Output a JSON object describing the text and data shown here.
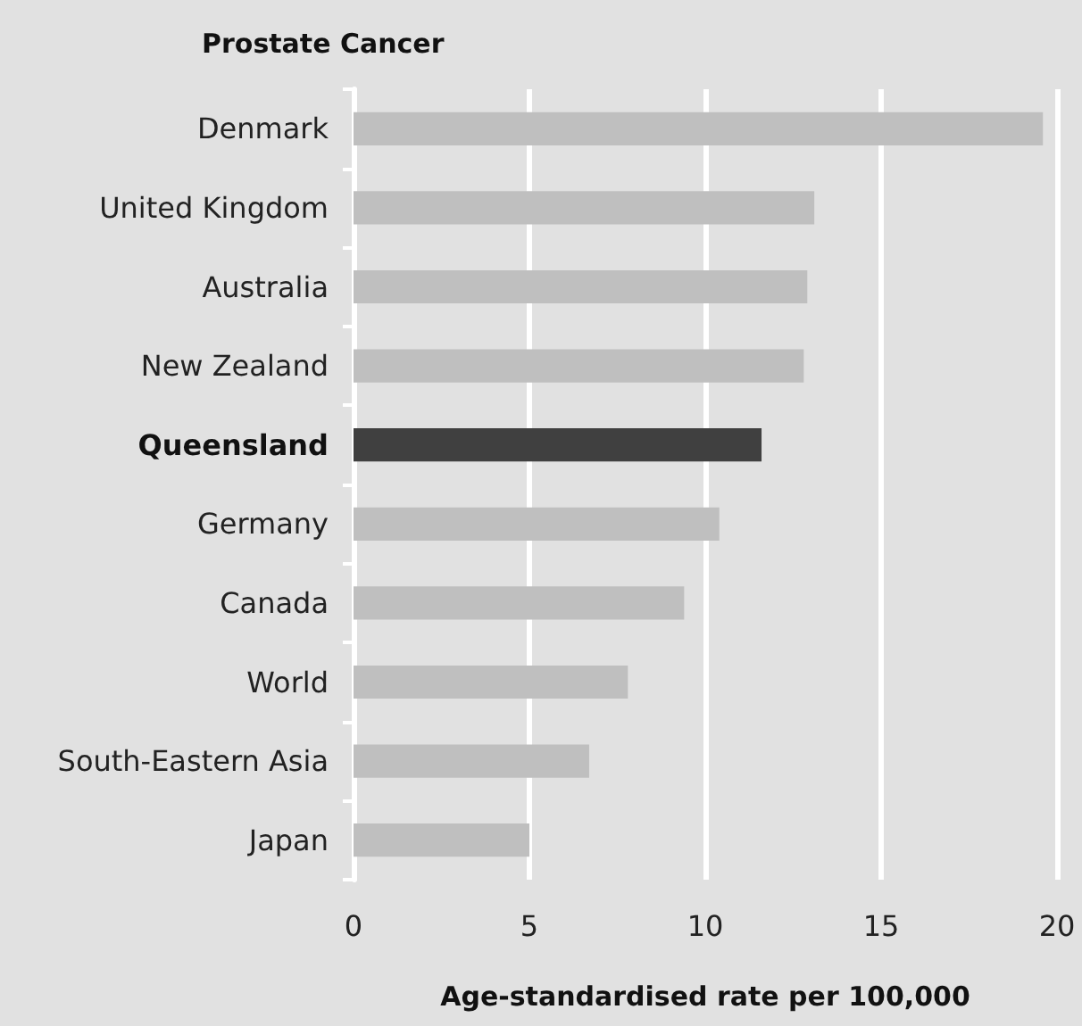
{
  "chart_data": {
    "type": "bar",
    "orientation": "horizontal",
    "title": "Prostate Cancer",
    "xlabel": "Age-standardised rate per 100,000",
    "categories": [
      "Denmark",
      "United Kingdom",
      "Australia",
      "New Zealand",
      "Queensland",
      "Germany",
      "Canada",
      "World",
      "South-Eastern Asia",
      "Japan"
    ],
    "values": [
      19.6,
      13.1,
      12.9,
      12.8,
      11.6,
      10.4,
      9.4,
      7.8,
      6.7,
      5.0
    ],
    "colors": [
      "#bfbfbf",
      "#bfbfbf",
      "#bfbfbf",
      "#bfbfbf",
      "#404040",
      "#bfbfbf",
      "#bfbfbf",
      "#bfbfbf",
      "#bfbfbf",
      "#bfbfbf"
    ],
    "xlim": [
      0,
      20
    ],
    "xticks": [
      0,
      5,
      10,
      15,
      20
    ],
    "grid": "x"
  }
}
